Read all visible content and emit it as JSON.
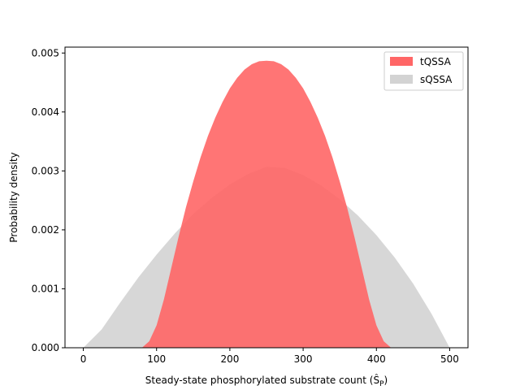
{
  "chart_data": {
    "type": "area",
    "title": "",
    "xlabel": "Steady-state phosphorylated substrate count (Ŝ",
    "xlabel_sub": "P",
    "xlabel_close": ")",
    "ylabel": "Probability density",
    "xlim": [
      -25,
      525
    ],
    "ylim": [
      0,
      0.0051
    ],
    "x_ticks": [
      0,
      100,
      200,
      300,
      400,
      500
    ],
    "x_tick_labels": [
      "0",
      "100",
      "200",
      "300",
      "400",
      "500"
    ],
    "y_ticks": [
      0,
      0.001,
      0.002,
      0.003,
      0.004,
      0.005
    ],
    "y_tick_labels": [
      "0.000",
      "0.001",
      "0.002",
      "0.003",
      "0.004",
      "0.005"
    ],
    "grid": false,
    "legend_position": "top-right",
    "series": [
      {
        "name": "tQSSA",
        "color": "#ff6666",
        "x": [
          80,
          90,
          100,
          110,
          120,
          130,
          140,
          150,
          160,
          170,
          180,
          190,
          200,
          210,
          220,
          230,
          240,
          250,
          260,
          270,
          280,
          290,
          300,
          310,
          320,
          330,
          340,
          350,
          360,
          370,
          380,
          390,
          400,
          410,
          420
        ],
        "values": [
          0,
          0.00011,
          0.00038,
          0.00082,
          0.00135,
          0.00188,
          0.00238,
          0.00282,
          0.00323,
          0.00359,
          0.0039,
          0.00417,
          0.0044,
          0.00458,
          0.00472,
          0.00481,
          0.00486,
          0.00487,
          0.00486,
          0.00481,
          0.00472,
          0.00458,
          0.0044,
          0.00417,
          0.0039,
          0.00359,
          0.00323,
          0.00282,
          0.00238,
          0.00188,
          0.00135,
          0.00082,
          0.00038,
          0.00011,
          0
        ]
      },
      {
        "name": "sQSSA",
        "color": "#d3d3d3",
        "x": [
          0,
          25,
          50,
          75,
          100,
          125,
          150,
          175,
          200,
          225,
          250,
          275,
          300,
          325,
          350,
          375,
          400,
          425,
          450,
          475,
          500
        ],
        "values": [
          0,
          0.00031,
          0.00076,
          0.00119,
          0.00158,
          0.00194,
          0.00227,
          0.00254,
          0.00277,
          0.00295,
          0.00307,
          0.00305,
          0.00293,
          0.00275,
          0.00252,
          0.00224,
          0.00191,
          0.00153,
          0.00109,
          0.00058,
          0
        ]
      }
    ]
  }
}
